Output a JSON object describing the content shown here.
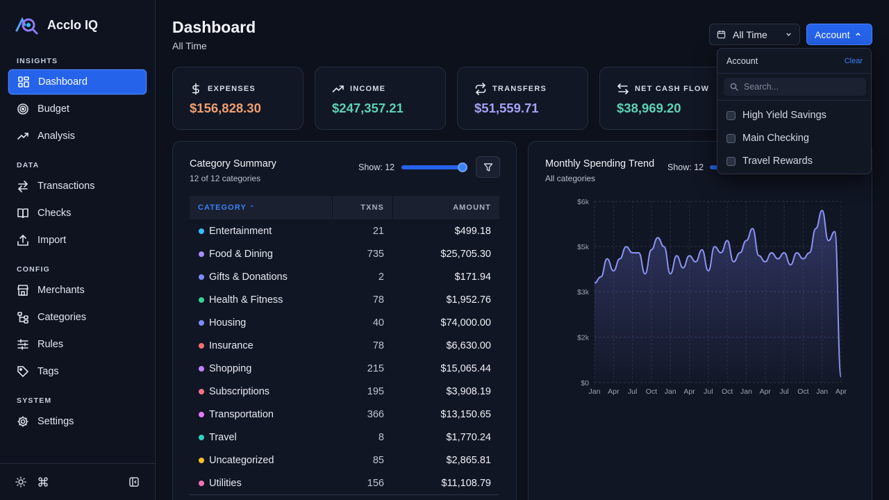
{
  "app": {
    "name": "Acclo IQ"
  },
  "sidebar": {
    "sections": [
      {
        "label": "INSIGHTS",
        "items": [
          {
            "label": "Dashboard",
            "icon": "dashboard-icon",
            "active": true
          },
          {
            "label": "Budget",
            "icon": "target-icon"
          },
          {
            "label": "Analysis",
            "icon": "trend-icon"
          }
        ]
      },
      {
        "label": "DATA",
        "items": [
          {
            "label": "Transactions",
            "icon": "arrows-icon"
          },
          {
            "label": "Checks",
            "icon": "book-icon"
          },
          {
            "label": "Import",
            "icon": "upload-icon"
          }
        ]
      },
      {
        "label": "CONFIG",
        "items": [
          {
            "label": "Merchants",
            "icon": "store-icon"
          },
          {
            "label": "Categories",
            "icon": "tree-icon"
          },
          {
            "label": "Rules",
            "icon": "sliders-icon"
          },
          {
            "label": "Tags",
            "icon": "tag-icon"
          }
        ]
      },
      {
        "label": "SYSTEM",
        "items": [
          {
            "label": "Settings",
            "icon": "gear-icon"
          }
        ]
      }
    ]
  },
  "header": {
    "title": "Dashboard",
    "subtitle": "All Time",
    "time_filter": "All Time",
    "account_button": "Account"
  },
  "stats": [
    {
      "label": "EXPENSES",
      "value": "$156,828.30",
      "color": "#f0a070",
      "icon": "dollar-icon"
    },
    {
      "label": "INCOME",
      "value": "$247,357.21",
      "color": "#5fd1b3",
      "icon": "trending-up-icon"
    },
    {
      "label": "TRANSFERS",
      "value": "$51,559.71",
      "color": "#a7a3f5",
      "icon": "repeat-icon"
    },
    {
      "label": "NET CASH FLOW",
      "value": "$38,969.20",
      "color": "#5fd1b3",
      "icon": "swap-icon"
    }
  ],
  "category_summary": {
    "title": "Category Summary",
    "subtitle": "12 of 12 categories",
    "show_label": "Show: 12",
    "show_value": 12,
    "show_max": 12,
    "columns": [
      "CATEGORY",
      "TXNS",
      "AMOUNT"
    ],
    "rows": [
      {
        "name": "Entertainment",
        "txns": "21",
        "amount": "$499.18",
        "color": "#38bdf8"
      },
      {
        "name": "Food & Dining",
        "txns": "735",
        "amount": "$25,705.30",
        "color": "#a78bfa"
      },
      {
        "name": "Gifts & Donations",
        "txns": "2",
        "amount": "$171.94",
        "color": "#818cf8"
      },
      {
        "name": "Health & Fitness",
        "txns": "78",
        "amount": "$1,952.76",
        "color": "#34d399"
      },
      {
        "name": "Housing",
        "txns": "40",
        "amount": "$74,000.00",
        "color": "#818cf8"
      },
      {
        "name": "Insurance",
        "txns": "78",
        "amount": "$6,630.00",
        "color": "#f87171"
      },
      {
        "name": "Shopping",
        "txns": "215",
        "amount": "$15,065.44",
        "color": "#c084fc"
      },
      {
        "name": "Subscriptions",
        "txns": "195",
        "amount": "$3,908.19",
        "color": "#fb7185"
      },
      {
        "name": "Transportation",
        "txns": "366",
        "amount": "$13,150.65",
        "color": "#e879f9"
      },
      {
        "name": "Travel",
        "txns": "8",
        "amount": "$1,770.24",
        "color": "#2dd4bf"
      },
      {
        "name": "Uncategorized",
        "txns": "85",
        "amount": "$2,865.81",
        "color": "#fbbf24"
      },
      {
        "name": "Utilities",
        "txns": "156",
        "amount": "$11,108.79",
        "color": "#f472b6"
      }
    ]
  },
  "trend": {
    "title": "Monthly Spending Trend",
    "subtitle": "All categories",
    "show_label": "Show: 12"
  },
  "chart_data": {
    "type": "area",
    "title": "Monthly Spending Trend",
    "x": [
      "Jan",
      "",
      "",
      "Apr",
      "",
      "",
      "Jul",
      "",
      "",
      "Oct",
      "",
      "",
      "Jan",
      "",
      "",
      "Apr",
      "",
      "",
      "Jul",
      "",
      "",
      "Oct",
      "",
      "",
      "Jan",
      "",
      "",
      "Apr",
      "",
      "",
      "Jul",
      "",
      "",
      "Oct",
      "",
      "",
      "Jan",
      "",
      "",
      "Apr"
    ],
    "x_tick_labels": [
      "Jan",
      "Apr",
      "Jul",
      "Oct",
      "Jan",
      "Apr",
      "Jul",
      "Oct",
      "Jan",
      "Apr",
      "Jul",
      "Oct",
      "Jan",
      "Apr"
    ],
    "values": [
      3300,
      3500,
      4100,
      3700,
      4100,
      4500,
      4300,
      4300,
      3600,
      4400,
      4800,
      4500,
      3600,
      4200,
      3800,
      4200,
      4000,
      4400,
      3700,
      4500,
      4300,
      4700,
      4000,
      4300,
      4700,
      5100,
      4200,
      4000,
      4300,
      4100,
      4300,
      3900,
      4300,
      4100,
      4300,
      5100,
      5700,
      4700,
      5000,
      200
    ],
    "yticks": [
      "$0",
      "$2k",
      "$3k",
      "$5k",
      "$6k"
    ],
    "ylim": [
      0,
      6000
    ],
    "color": "#8b93f2",
    "grid": true
  },
  "account_dropdown": {
    "title": "Account",
    "clear": "Clear",
    "search_placeholder": "Search...",
    "options": [
      "High Yield Savings",
      "Main Checking",
      "Travel Rewards"
    ]
  }
}
